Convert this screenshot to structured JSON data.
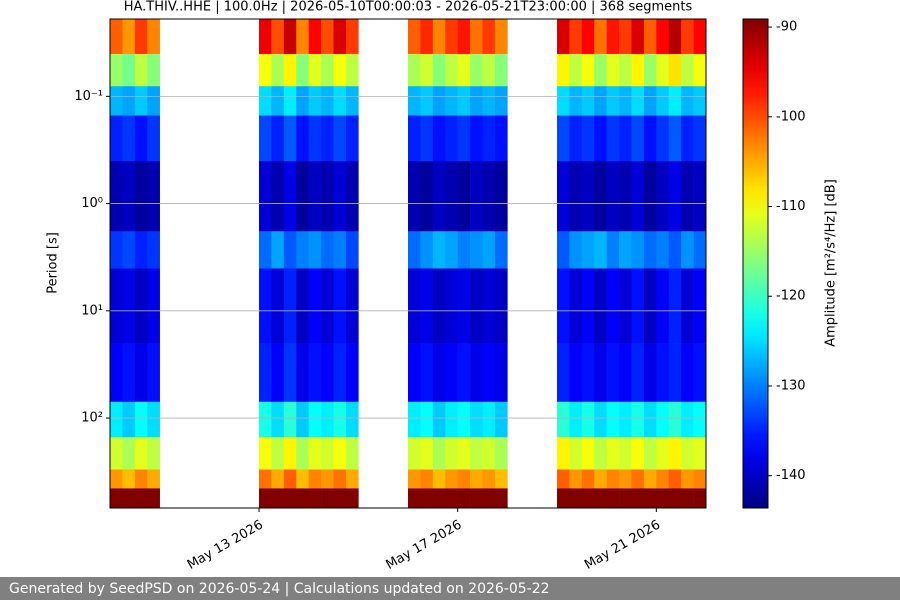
{
  "chart_data": {
    "type": "heatmap",
    "title": "HA.THIV..HHE | 100.0Hz | 2026-05-10T00:00:03 - 2026-05-21T23:00:00 | 368 segments",
    "y_label": "Period [s]",
    "colorbar_label": "Amplitude [m²/s⁴/Hz] [dB]",
    "colormap": "jet",
    "y_log": true,
    "invert_y": true,
    "grid": true,
    "xlim": [
      "2026-05-10T00:00",
      "2026-05-22T00:00"
    ],
    "xticks": [
      {
        "value": "2026-05-13T00:00",
        "label": "May 13 2026"
      },
      {
        "value": "2026-05-17T00:00",
        "label": "May 17 2026"
      },
      {
        "value": "2026-05-21T00:00",
        "label": "May 21 2026"
      }
    ],
    "ylim": [
      0.019,
      690
    ],
    "yticks": [
      {
        "value": 0.1,
        "label": "10⁻¹"
      },
      {
        "value": 1,
        "label": "10⁰"
      },
      {
        "value": 10,
        "label": "10¹"
      },
      {
        "value": 100,
        "label": "10²"
      }
    ],
    "clim": [
      -143.6,
      -89.1
    ],
    "cticks": [
      -90,
      -100,
      -110,
      -120,
      -130,
      -140
    ],
    "x_edges": [
      "2026-05-10T00:00",
      "2026-05-10T06:00",
      "2026-05-10T12:00",
      "2026-05-10T18:00",
      "2026-05-11T00:00",
      "2026-05-11T06:00",
      "2026-05-11T12:00",
      "2026-05-11T18:00",
      "2026-05-12T00:00",
      "2026-05-12T06:00",
      "2026-05-12T12:00",
      "2026-05-12T18:00",
      "2026-05-13T00:00",
      "2026-05-13T06:00",
      "2026-05-13T12:00",
      "2026-05-13T18:00",
      "2026-05-14T00:00",
      "2026-05-14T06:00",
      "2026-05-14T12:00",
      "2026-05-14T18:00",
      "2026-05-15T00:00",
      "2026-05-15T06:00",
      "2026-05-15T12:00",
      "2026-05-15T18:00",
      "2026-05-16T00:00",
      "2026-05-16T06:00",
      "2026-05-16T12:00",
      "2026-05-16T18:00",
      "2026-05-17T00:00",
      "2026-05-17T06:00",
      "2026-05-17T12:00",
      "2026-05-17T18:00",
      "2026-05-18T00:00",
      "2026-05-18T06:00",
      "2026-05-18T12:00",
      "2026-05-18T18:00",
      "2026-05-19T00:00",
      "2026-05-19T06:00",
      "2026-05-19T12:00",
      "2026-05-19T18:00",
      "2026-05-20T00:00",
      "2026-05-20T06:00",
      "2026-05-20T12:00",
      "2026-05-20T18:00",
      "2026-05-21T00:00",
      "2026-05-21T06:00",
      "2026-05-21T12:00",
      "2026-05-21T18:00",
      "2026-05-22T00:00"
    ],
    "y_edges": [
      690,
      450,
      300,
      150,
      70,
      20,
      4,
      1.8,
      0.4,
      0.15,
      0.08,
      0.04,
      0.019
    ],
    "z": [
      [
        -89,
        -89,
        -89,
        -89,
        null,
        null,
        null,
        null,
        null,
        null,
        null,
        null,
        -89,
        -88,
        -89,
        -89,
        -89,
        -88,
        -89,
        -89,
        null,
        null,
        null,
        null,
        -89,
        -89,
        -89,
        -89,
        -89,
        -89,
        -89,
        -89,
        null,
        null,
        null,
        null,
        -89,
        -88,
        -89,
        -89,
        -89,
        -89,
        -88,
        -89,
        -89,
        -89,
        -89,
        -89
      ],
      [
        -104,
        -106,
        -103,
        -105,
        null,
        null,
        null,
        null,
        null,
        null,
        null,
        null,
        -102,
        -105,
        -101,
        -106,
        -103,
        -104,
        -102,
        -105,
        null,
        null,
        null,
        null,
        -104,
        -103,
        -106,
        -104,
        -103,
        -105,
        -104,
        -106,
        null,
        null,
        null,
        null,
        -101,
        -104,
        -102,
        -105,
        -103,
        -104,
        -102,
        -105,
        -103,
        -101,
        -104,
        -103
      ],
      [
        -112,
        -114,
        -111,
        -113,
        null,
        null,
        null,
        null,
        null,
        null,
        null,
        null,
        -110,
        -113,
        -109,
        -114,
        -111,
        -112,
        -110,
        -113,
        null,
        null,
        null,
        null,
        -112,
        -111,
        -114,
        -112,
        -111,
        -113,
        -112,
        -114,
        null,
        null,
        null,
        null,
        -109,
        -112,
        -110,
        -113,
        -111,
        -112,
        -110,
        -113,
        -111,
        -109,
        -112,
        -111
      ],
      [
        -124,
        -126,
        -123,
        -125,
        null,
        null,
        null,
        null,
        null,
        null,
        null,
        null,
        -122,
        -125,
        -121,
        -126,
        -123,
        -124,
        -122,
        -125,
        null,
        null,
        null,
        null,
        -124,
        -123,
        -126,
        -124,
        -123,
        -125,
        -124,
        -126,
        null,
        null,
        null,
        null,
        -121,
        -124,
        -122,
        -125,
        -123,
        -124,
        -122,
        -125,
        -123,
        -121,
        -124,
        -123
      ],
      [
        -137,
        -136,
        -138,
        -136,
        null,
        null,
        null,
        null,
        null,
        null,
        null,
        null,
        -135,
        -137,
        -134,
        -138,
        -136,
        -137,
        -135,
        -137,
        null,
        null,
        null,
        null,
        -137,
        -136,
        -138,
        -137,
        -136,
        -138,
        -137,
        -138,
        null,
        null,
        null,
        null,
        -135,
        -137,
        -136,
        -138,
        -136,
        -137,
        -135,
        -138,
        -136,
        -135,
        -137,
        -136
      ],
      [
        -139,
        -138,
        -140,
        -138,
        null,
        null,
        null,
        null,
        null,
        null,
        null,
        null,
        -136,
        -139,
        -135,
        -140,
        -137,
        -139,
        -136,
        -139,
        null,
        null,
        null,
        null,
        -139,
        -138,
        -140,
        -139,
        -138,
        -140,
        -139,
        -140,
        null,
        null,
        null,
        null,
        -136,
        -139,
        -137,
        -140,
        -137,
        -139,
        -136,
        -140,
        -137,
        -135,
        -139,
        -137
      ],
      [
        -134,
        -133,
        -135,
        -134,
        null,
        null,
        null,
        null,
        null,
        null,
        null,
        null,
        -131,
        -128,
        -132,
        -130,
        -129,
        -131,
        -130,
        -133,
        null,
        null,
        null,
        null,
        -131,
        -129,
        -127,
        -128,
        -130,
        -129,
        -128,
        -131,
        null,
        null,
        null,
        null,
        -132,
        -129,
        -128,
        -127,
        -130,
        -128,
        -129,
        -131,
        -130,
        -132,
        -129,
        -131
      ],
      [
        -141,
        -140,
        -142,
        -141,
        null,
        null,
        null,
        null,
        null,
        null,
        null,
        null,
        -139,
        -141,
        -138,
        -142,
        -140,
        -141,
        -139,
        -141,
        null,
        null,
        null,
        null,
        -141,
        -142,
        -140,
        -141,
        -142,
        -140,
        -141,
        -142,
        null,
        null,
        null,
        null,
        -139,
        -141,
        -140,
        -142,
        -140,
        -141,
        -139,
        -142,
        -140,
        -138,
        -141,
        -140
      ],
      [
        -135,
        -134,
        -136,
        -134,
        null,
        null,
        null,
        null,
        null,
        null,
        null,
        null,
        -133,
        -135,
        -132,
        -136,
        -134,
        -135,
        -133,
        -135,
        null,
        null,
        null,
        null,
        -135,
        -134,
        -136,
        -135,
        -134,
        -136,
        -135,
        -136,
        null,
        null,
        null,
        null,
        -133,
        -135,
        -134,
        -136,
        -134,
        -135,
        -133,
        -136,
        -134,
        -132,
        -135,
        -134
      ],
      [
        -127,
        -128,
        -126,
        -128,
        null,
        null,
        null,
        null,
        null,
        null,
        null,
        null,
        -125,
        -127,
        -124,
        -128,
        -126,
        -127,
        -125,
        -127,
        null,
        null,
        null,
        null,
        -127,
        -126,
        -128,
        -127,
        -126,
        -128,
        -127,
        -128,
        null,
        null,
        null,
        null,
        -125,
        -127,
        -126,
        -128,
        -126,
        -127,
        -125,
        -128,
        -126,
        -124,
        -127,
        -126
      ],
      [
        -115,
        -117,
        -113,
        -116,
        null,
        null,
        null,
        null,
        null,
        null,
        null,
        null,
        -110,
        -114,
        -109,
        -116,
        -111,
        -114,
        -110,
        -113,
        null,
        null,
        null,
        null,
        -114,
        -112,
        -116,
        -113,
        -111,
        -115,
        -113,
        -116,
        null,
        null,
        null,
        null,
        -109,
        -113,
        -110,
        -115,
        -111,
        -113,
        -109,
        -115,
        -111,
        -108,
        -113,
        -110
      ],
      [
        -101,
        -104,
        -99,
        -103,
        null,
        null,
        null,
        null,
        null,
        null,
        null,
        null,
        -95,
        -100,
        -93,
        -103,
        -96,
        -100,
        -94,
        -99,
        null,
        null,
        null,
        null,
        -101,
        -98,
        -103,
        -99,
        -97,
        -102,
        -99,
        -103,
        null,
        null,
        null,
        null,
        -94,
        -99,
        -96,
        -102,
        -97,
        -99,
        -94,
        -101,
        -96,
        -92,
        -99,
        -96
      ]
    ]
  },
  "footer": "Generated by SeedPSD on 2026-05-24 | Calculations updated on 2026-05-22"
}
